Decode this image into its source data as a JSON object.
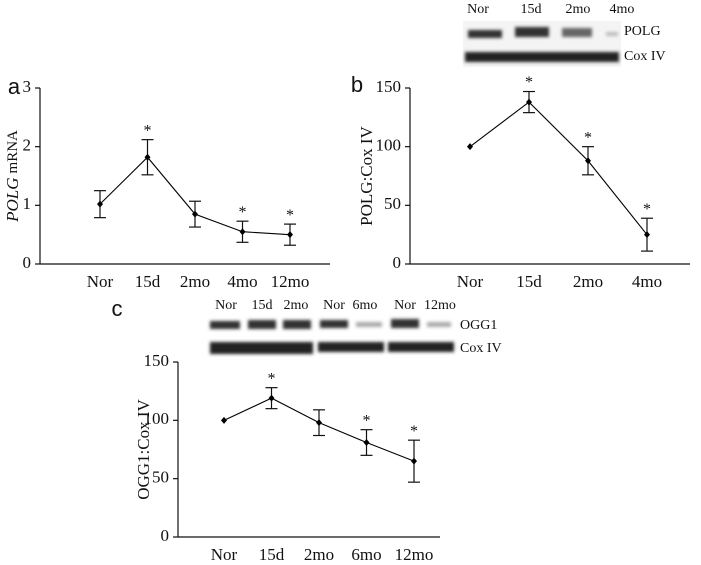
{
  "chart_data": [
    {
      "type": "line",
      "panel": "a",
      "ylabel_italic": "POLG",
      "ylabel": "mRNA",
      "categories": [
        "Nor",
        "15d",
        "2mo",
        "4mo",
        "12mo"
      ],
      "values": [
        1.02,
        1.82,
        0.85,
        0.55,
        0.5
      ],
      "errors": [
        0.23,
        0.3,
        0.22,
        0.18,
        0.18
      ],
      "significance": [
        null,
        "*",
        null,
        "*",
        "*"
      ],
      "color": "#000000",
      "ylim": [
        0,
        3
      ],
      "yticks": [
        0,
        1,
        2,
        3
      ],
      "grid": false
    },
    {
      "type": "line",
      "panel": "b",
      "ylabel": "POLG:Cox IV",
      "categories": [
        "Nor",
        "15d",
        "2mo",
        "4mo"
      ],
      "values": [
        100,
        138,
        88,
        25
      ],
      "errors": [
        null,
        9,
        12,
        14
      ],
      "significance": [
        null,
        "*",
        "*",
        "*"
      ],
      "color": "#000000",
      "ylim": [
        0,
        150
      ],
      "yticks": [
        0,
        50,
        100,
        150
      ],
      "grid": false,
      "blot": {
        "lanes": [
          "Nor",
          "15d",
          "2mo",
          "4mo"
        ],
        "proteins": [
          "POLG",
          "Cox IV"
        ]
      }
    },
    {
      "type": "line",
      "panel": "c",
      "ylabel": "OGG1:Cox IV",
      "categories": [
        "Nor",
        "15d",
        "2mo",
        "6mo",
        "12mo"
      ],
      "values": [
        100,
        119,
        98,
        81,
        65
      ],
      "errors": [
        null,
        9,
        11,
        11,
        18
      ],
      "significance": [
        null,
        "*",
        null,
        "*",
        "*"
      ],
      "color": "#000000",
      "ylim": [
        0,
        150
      ],
      "yticks": [
        0,
        50,
        100,
        150
      ],
      "grid": false,
      "blot": {
        "lanes": [
          "Nor",
          "15d",
          "2mo",
          "Nor",
          "6mo",
          "Nor",
          "12mo"
        ],
        "proteins": [
          "OGG1",
          "Cox IV"
        ]
      }
    }
  ]
}
